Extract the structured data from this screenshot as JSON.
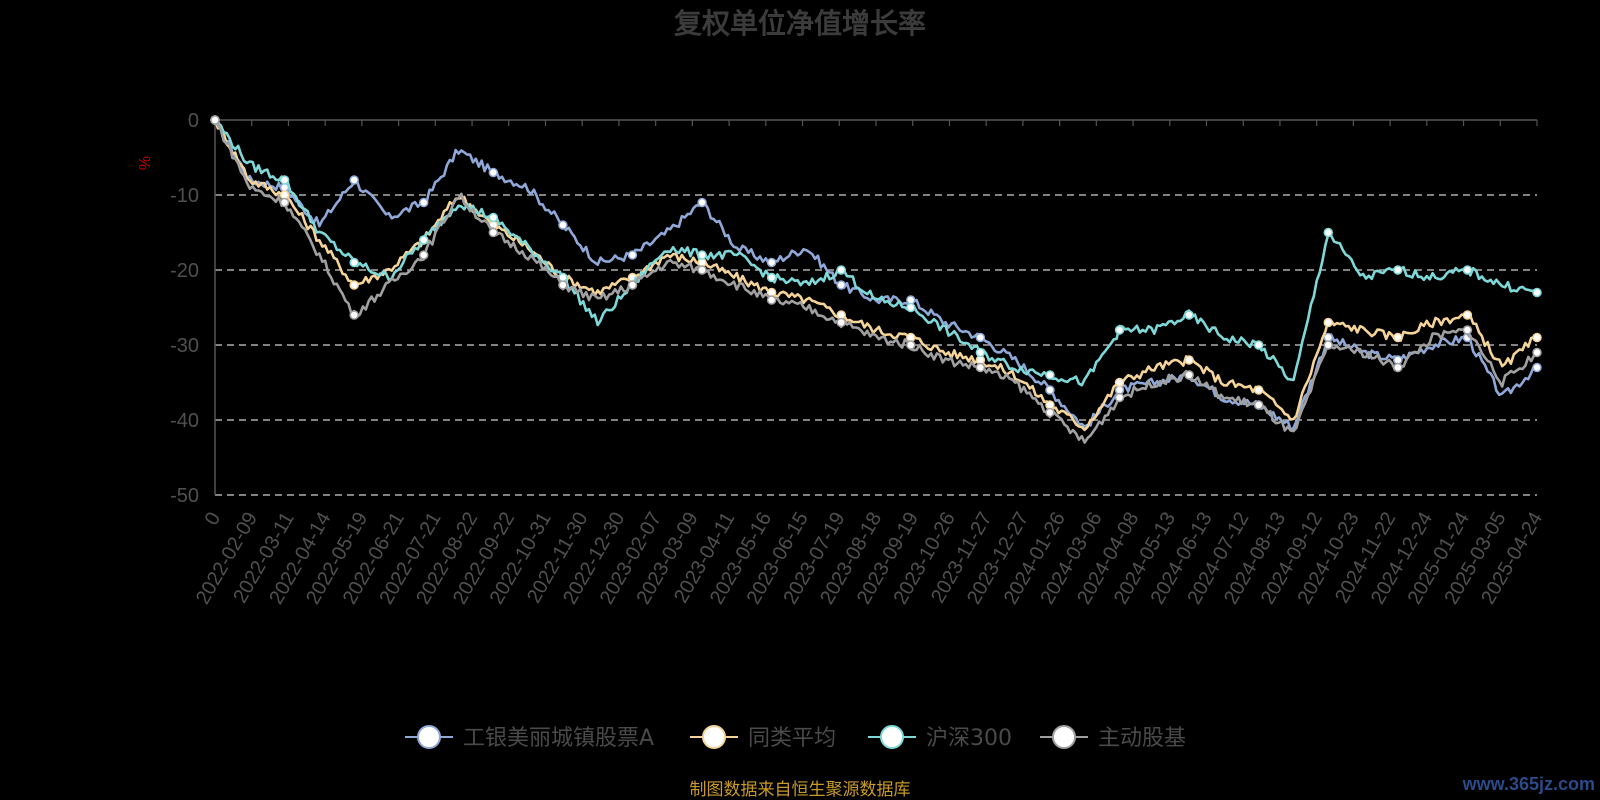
{
  "chart_data": {
    "type": "line",
    "title": "复权单位净值增长率",
    "ylabel": "%",
    "ylim": [
      -50,
      0
    ],
    "yticks": [
      0,
      -10,
      -20,
      -30,
      -40,
      -50
    ],
    "grid": true,
    "legend_position": "bottom",
    "x_ticks": [
      "0",
      "2022-02-09",
      "2022-03-11",
      "2022-04-14",
      "2022-05-19",
      "2022-06-21",
      "2022-07-21",
      "2022-08-22",
      "2022-09-22",
      "2022-10-31",
      "2022-11-30",
      "2022-12-30",
      "2023-02-07",
      "2023-03-09",
      "2023-04-11",
      "2023-05-16",
      "2023-06-15",
      "2023-07-19",
      "2023-08-18",
      "2023-09-19",
      "2023-10-26",
      "2023-11-27",
      "2023-12-27",
      "2024-01-26",
      "2024-03-06",
      "2024-04-08",
      "2024-05-13",
      "2024-06-13",
      "2024-07-12",
      "2024-08-13",
      "2024-09-12",
      "2024-10-23",
      "2024-11-22",
      "2024-12-24",
      "2025-01-24",
      "2025-03-05",
      "2025-04-24"
    ],
    "series": [
      {
        "name": "工银美丽城镇股票A",
        "color": "#8fa8d8",
        "values": [
          0,
          -8,
          -9,
          -14,
          -8,
          -13,
          -11,
          -4,
          -7,
          -9,
          -14,
          -19,
          -18,
          -15,
          -11,
          -17,
          -19,
          -17,
          -22,
          -24,
          -24,
          -27,
          -29,
          -32,
          -36,
          -41,
          -36,
          -35,
          -34,
          -37,
          -38,
          -41,
          -29,
          -31,
          -32,
          -30,
          -29,
          -37,
          -33
        ]
      },
      {
        "name": "同类平均",
        "color": "#f5d49a",
        "values": [
          0,
          -8,
          -10,
          -16,
          -22,
          -20,
          -16,
          -10,
          -14,
          -17,
          -21,
          -23,
          -21,
          -18,
          -19,
          -21,
          -23,
          -24,
          -26,
          -28,
          -29,
          -31,
          -32,
          -34,
          -38,
          -41,
          -35,
          -33,
          -32,
          -35,
          -36,
          -40,
          -27,
          -28,
          -29,
          -27,
          -26,
          -33,
          -29
        ]
      },
      {
        "name": "沪深300",
        "color": "#7fd8d8",
        "values": [
          0,
          -6,
          -8,
          -15,
          -19,
          -21,
          -16,
          -11,
          -13,
          -17,
          -21,
          -27,
          -22,
          -17,
          -18,
          -18,
          -21,
          -22,
          -20,
          -24,
          -25,
          -28,
          -31,
          -33,
          -34,
          -35,
          -28,
          -28,
          -26,
          -29,
          -30,
          -35,
          -15,
          -21,
          -20,
          -21,
          -20,
          -22,
          -23
        ]
      },
      {
        "name": "主动股基",
        "color": "#a0a0a0",
        "values": [
          0,
          -9,
          -11,
          -18,
          -26,
          -22,
          -18,
          -10,
          -15,
          -18,
          -22,
          -24,
          -22,
          -19,
          -20,
          -22,
          -24,
          -25,
          -27,
          -29,
          -30,
          -32,
          -33,
          -35,
          -39,
          -43,
          -37,
          -35,
          -34,
          -37,
          -38,
          -42,
          -30,
          -31,
          -33,
          -29,
          -28,
          -35,
          -31
        ]
      }
    ]
  },
  "footer": {
    "source": "制图数据来自恒生聚源数据库",
    "watermark": "www.365jz.com"
  }
}
